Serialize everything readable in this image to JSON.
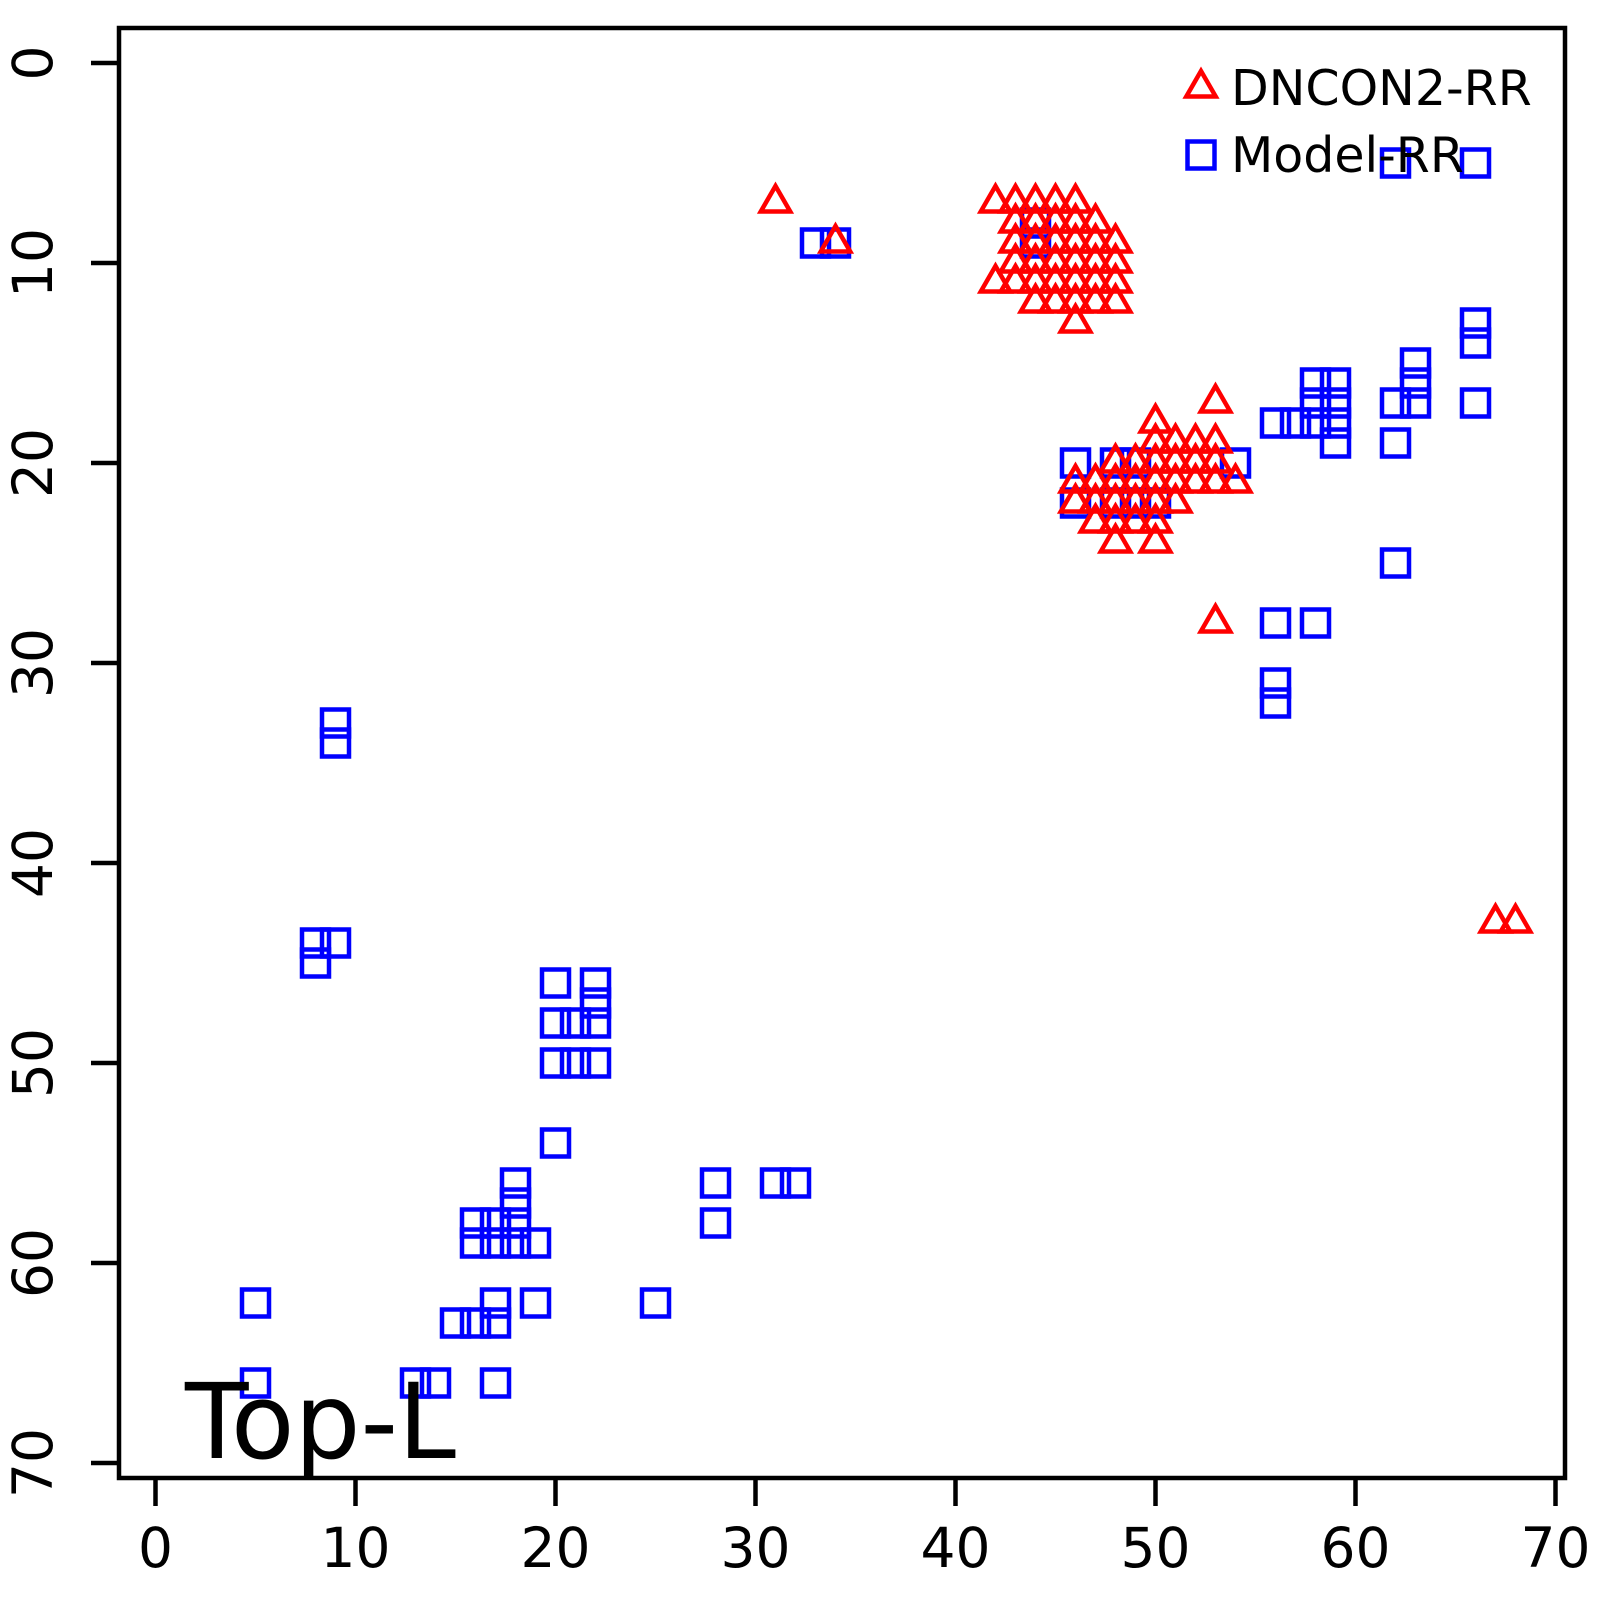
{
  "chart_data": {
    "type": "scatter",
    "title": "",
    "annotation": "Top-L",
    "xlabel": "",
    "ylabel": "",
    "xlim": [
      0,
      70
    ],
    "ylim": [
      70,
      0
    ],
    "y_axis_inverted": true,
    "grid": false,
    "x_ticks": [
      "0",
      "10",
      "20",
      "30",
      "40",
      "50",
      "60",
      "70"
    ],
    "x_tick_values": [
      0,
      10,
      20,
      30,
      40,
      50,
      60,
      70
    ],
    "y_ticks": [
      "0",
      "10",
      "20",
      "30",
      "40",
      "50",
      "60",
      "70"
    ],
    "y_tick_values": [
      0,
      10,
      20,
      30,
      40,
      50,
      60,
      70
    ],
    "legend": {
      "position": "top-right",
      "entries": [
        {
          "label": "DNCON2-RR",
          "marker": "triangle",
          "color": "#FF0000"
        },
        {
          "label": "Model-RR",
          "marker": "square",
          "color": "#0000FF"
        }
      ]
    },
    "colors": {
      "axis": "#000000",
      "dncon2": "#FF0000",
      "model": "#0000FF"
    },
    "series": [
      {
        "name": "DNCON2-RR",
        "marker": "triangle",
        "color": "#FF0000",
        "points": [
          [
            31,
            7
          ],
          [
            34,
            9
          ],
          [
            42,
            7
          ],
          [
            43,
            7
          ],
          [
            44,
            7
          ],
          [
            45,
            7
          ],
          [
            46,
            7
          ],
          [
            43,
            8
          ],
          [
            44,
            8
          ],
          [
            45,
            8
          ],
          [
            46,
            8
          ],
          [
            47,
            8
          ],
          [
            43,
            9
          ],
          [
            44,
            9
          ],
          [
            45,
            9
          ],
          [
            46,
            9
          ],
          [
            47,
            9
          ],
          [
            48,
            9
          ],
          [
            43,
            10
          ],
          [
            44,
            10
          ],
          [
            45,
            10
          ],
          [
            46,
            10
          ],
          [
            47,
            10
          ],
          [
            48,
            10
          ],
          [
            42,
            11
          ],
          [
            43,
            11
          ],
          [
            44,
            11
          ],
          [
            45,
            11
          ],
          [
            46,
            11
          ],
          [
            47,
            11
          ],
          [
            48,
            11
          ],
          [
            44,
            12
          ],
          [
            45,
            12
          ],
          [
            46,
            12
          ],
          [
            47,
            12
          ],
          [
            48,
            12
          ],
          [
            46,
            13
          ],
          [
            53,
            17
          ],
          [
            50,
            18
          ],
          [
            50,
            19
          ],
          [
            51,
            19
          ],
          [
            52,
            19
          ],
          [
            53,
            19
          ],
          [
            48,
            20
          ],
          [
            49,
            20
          ],
          [
            50,
            20
          ],
          [
            51,
            20
          ],
          [
            52,
            20
          ],
          [
            53,
            20
          ],
          [
            46,
            21
          ],
          [
            47,
            21
          ],
          [
            48,
            21
          ],
          [
            49,
            21
          ],
          [
            50,
            21
          ],
          [
            51,
            21
          ],
          [
            52,
            21
          ],
          [
            53,
            21
          ],
          [
            54,
            21
          ],
          [
            46,
            22
          ],
          [
            47,
            22
          ],
          [
            48,
            22
          ],
          [
            49,
            22
          ],
          [
            50,
            22
          ],
          [
            51,
            22
          ],
          [
            47,
            23
          ],
          [
            48,
            23
          ],
          [
            49,
            23
          ],
          [
            50,
            23
          ],
          [
            48,
            24
          ],
          [
            50,
            24
          ],
          [
            53,
            28
          ],
          [
            67,
            43
          ],
          [
            68,
            43
          ]
        ]
      },
      {
        "name": "Model-RR",
        "marker": "square",
        "color": "#0000FF",
        "points": [
          [
            62,
            5
          ],
          [
            66,
            5
          ],
          [
            33,
            9
          ],
          [
            34,
            9
          ],
          [
            44,
            8
          ],
          [
            44,
            9
          ],
          [
            46,
            20
          ],
          [
            48,
            20
          ],
          [
            49,
            20
          ],
          [
            54,
            20
          ],
          [
            46,
            22
          ],
          [
            48,
            22
          ],
          [
            49,
            22
          ],
          [
            50,
            22
          ],
          [
            56,
            18
          ],
          [
            57,
            18
          ],
          [
            58,
            18
          ],
          [
            59,
            18
          ],
          [
            58,
            17
          ],
          [
            59,
            17
          ],
          [
            58,
            16
          ],
          [
            59,
            16
          ],
          [
            59,
            19
          ],
          [
            62,
            17
          ],
          [
            63,
            17
          ],
          [
            63,
            16
          ],
          [
            63,
            15
          ],
          [
            62,
            19
          ],
          [
            66,
            13
          ],
          [
            66,
            14
          ],
          [
            66,
            17
          ],
          [
            62,
            25
          ],
          [
            56,
            28
          ],
          [
            58,
            28
          ],
          [
            56,
            31
          ],
          [
            56,
            32
          ],
          [
            9,
            33
          ],
          [
            9,
            34
          ],
          [
            8,
            44
          ],
          [
            9,
            44
          ],
          [
            8,
            45
          ],
          [
            20,
            46
          ],
          [
            22,
            46
          ],
          [
            22,
            47
          ],
          [
            20,
            48
          ],
          [
            21,
            48
          ],
          [
            22,
            48
          ],
          [
            20,
            50
          ],
          [
            21,
            50
          ],
          [
            22,
            50
          ],
          [
            20,
            54
          ],
          [
            18,
            56
          ],
          [
            18,
            57
          ],
          [
            16,
            58
          ],
          [
            17,
            58
          ],
          [
            18,
            58
          ],
          [
            16,
            59
          ],
          [
            17,
            59
          ],
          [
            18,
            59
          ],
          [
            19,
            59
          ],
          [
            28,
            56
          ],
          [
            31,
            56
          ],
          [
            32,
            56
          ],
          [
            28,
            58
          ],
          [
            5,
            62
          ],
          [
            17,
            62
          ],
          [
            19,
            62
          ],
          [
            25,
            62
          ],
          [
            15,
            63
          ],
          [
            16,
            63
          ],
          [
            17,
            63
          ],
          [
            5,
            66
          ],
          [
            13,
            66
          ],
          [
            14,
            66
          ],
          [
            17,
            66
          ]
        ]
      }
    ]
  }
}
